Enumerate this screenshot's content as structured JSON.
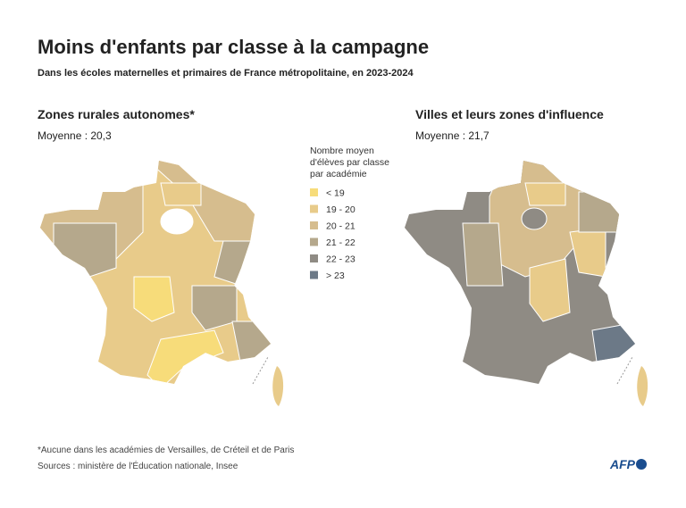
{
  "title": "Moins d'enfants par classe à la campagne",
  "subtitle": "Dans les écoles maternelles et primaires de France métropolitaine, en 2023-2024",
  "maps": [
    {
      "title": "Zones rurales autonomes*",
      "average": "Moyenne : 20,3"
    },
    {
      "title": "Villes et leurs zones d'influence",
      "average": "Moyenne : 21,7"
    }
  ],
  "legend": {
    "title": [
      "Nombre moyen",
      "d'élèves par classe",
      "par académie"
    ],
    "items": [
      {
        "label": "< 19",
        "color": "#f7dc7a"
      },
      {
        "label": "19 - 20",
        "color": "#e8cb8a"
      },
      {
        "label": "20 - 21",
        "color": "#d6bd8e"
      },
      {
        "label": "21 - 22",
        "color": "#b5a88c"
      },
      {
        "label": "22 - 23",
        "color": "#8f8b84"
      },
      {
        "label": "> 23",
        "color": "#6c7987"
      }
    ]
  },
  "footnote": "*Aucune dans les académies de Versailles, de Créteil et de Paris",
  "sources": "Sources : ministère de l'Éducation nationale, Insee",
  "logo": "AFP"
}
